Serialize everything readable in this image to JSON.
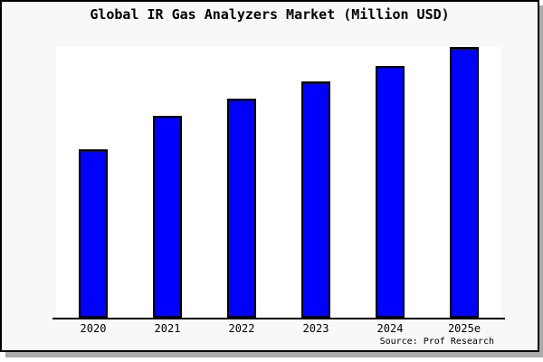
{
  "title": "Global IR Gas Analyzers Market (Million USD)",
  "source": "Source: Prof Research",
  "colors": {
    "bar_fill": "#0000ff",
    "bar_border": "#000000",
    "chart_bg": "#f8f8f8",
    "plot_bg": "#ffffff",
    "frame": "#000000",
    "shadow": "#ababab",
    "text": "#000000"
  },
  "chart_data": {
    "type": "bar",
    "title": "Global IR Gas Analyzers Market (Million USD)",
    "categories": [
      "2020",
      "2021",
      "2022",
      "2023",
      "2024",
      "2025e"
    ],
    "values": [
      62.3,
      74.7,
      81.0,
      87.3,
      93.0,
      100.0
    ],
    "units": "relative units (no y-axis tick labels shown; estimated from bar heights, 2025e = 100)",
    "xlabel": "",
    "ylabel": "",
    "ylim": [
      0,
      100
    ],
    "grid": false,
    "legend": null,
    "source": "Source: Prof Research"
  }
}
